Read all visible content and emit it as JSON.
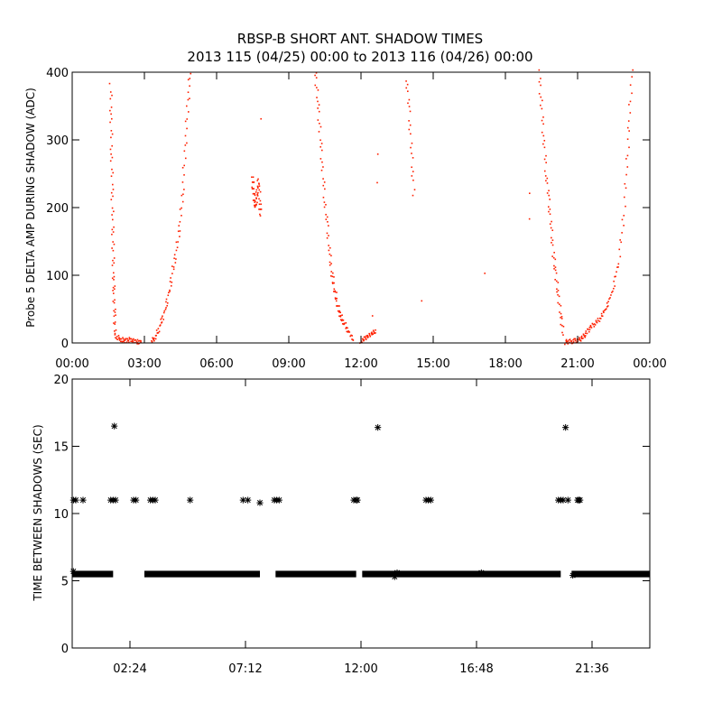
{
  "title_line1": "RBSP-B SHORT ANT. SHADOW TIMES",
  "title_line2": "2013 115 (04/25) 00:00 to 2013 116 (04/26) 00:00",
  "colors": {
    "amp": "#ff2000",
    "gap": "#000000"
  },
  "chart_data": [
    {
      "type": "scatter",
      "ylabel": "Probe 5 DELTA AMP DURING SHADOW (ADC)",
      "xlim": [
        0,
        24
      ],
      "ylim": [
        0,
        400
      ],
      "x_unit": "hours",
      "xticks": [
        0,
        3,
        6,
        9,
        12,
        15,
        18,
        21,
        24
      ],
      "xtick_labels": [
        "00:00",
        "03:00",
        "06:00",
        "09:00",
        "12:00",
        "15:00",
        "18:00",
        "21:00",
        "00:00"
      ],
      "yticks": [
        0,
        100,
        200,
        300,
        400
      ],
      "ytick_labels": [
        "0",
        "100",
        "200",
        "300",
        "400"
      ],
      "color": "#ff2000",
      "segments": [
        {
          "x": [
            1.6,
            1.62,
            1.64,
            1.66,
            1.68,
            1.7,
            1.72,
            1.74,
            1.76,
            1.78
          ],
          "y": [
            380,
            330,
            280,
            230,
            180,
            140,
            100,
            70,
            40,
            15
          ]
        },
        {
          "x": [
            1.8,
            1.95,
            2.1,
            2.25,
            2.4,
            2.55,
            2.7,
            2.85
          ],
          "y": [
            10,
            6,
            4,
            3,
            5,
            3,
            2,
            1
          ]
        },
        {
          "x": [
            3.3,
            3.45,
            3.6,
            3.75,
            3.9,
            4.05,
            4.2,
            4.35,
            4.5,
            4.6,
            4.7,
            4.8,
            4.9
          ],
          "y": [
            2,
            8,
            20,
            35,
            55,
            80,
            110,
            140,
            180,
            230,
            290,
            350,
            400
          ]
        },
        {
          "x": [
            7.5,
            7.52,
            7.55,
            7.6,
            7.65,
            7.7,
            7.75,
            7.8,
            7.82
          ],
          "y": [
            245,
            230,
            215,
            200,
            210,
            225,
            240,
            205,
            190
          ]
        },
        {
          "x": [
            10.1,
            10.2,
            10.3,
            10.4,
            10.5,
            10.6,
            10.7,
            10.8,
            10.9,
            11.0,
            11.1,
            11.2,
            11.35,
            11.5,
            11.7
          ],
          "y": [
            400,
            360,
            310,
            260,
            210,
            170,
            130,
            100,
            80,
            60,
            45,
            35,
            25,
            15,
            5
          ]
        },
        {
          "x": [
            12.0,
            12.15,
            12.3,
            12.45,
            12.6
          ],
          "y": [
            2,
            6,
            10,
            14,
            18
          ]
        },
        {
          "x": [
            13.9,
            14.0,
            14.1,
            14.2
          ],
          "y": [
            390,
            340,
            280,
            220
          ]
        },
        {
          "x": [
            19.4,
            19.5,
            19.6,
            19.7,
            19.8,
            19.9,
            20.0,
            20.1,
            20.2,
            20.3,
            20.4
          ],
          "y": [
            400,
            350,
            300,
            250,
            210,
            170,
            130,
            100,
            70,
            40,
            15
          ]
        },
        {
          "x": [
            20.5,
            20.6,
            20.75,
            20.9,
            21.05,
            21.2,
            21.35,
            21.5,
            21.7,
            21.9,
            22.1,
            22.3,
            22.5,
            22.7,
            22.9,
            23.05,
            23.15,
            23.25
          ],
          "y": [
            1,
            2,
            2,
            3,
            4,
            8,
            14,
            22,
            28,
            35,
            45,
            60,
            85,
            120,
            180,
            260,
            330,
            400
          ]
        },
        {
          "x": [
            7.8,
            12.7,
            12.72,
            14.5,
            12.5,
            17.1,
            19.0,
            19.05
          ],
          "y": [
            330,
            280,
            240,
            60,
            40,
            105,
            180,
            220
          ]
        }
      ]
    },
    {
      "type": "scatter",
      "ylabel": "TIME BETWEEN SHADOWS (SEC)",
      "xlim": [
        0,
        24
      ],
      "ylim": [
        0,
        20
      ],
      "x_unit": "hours",
      "xticks": [
        2.4,
        7.2,
        12.0,
        16.8,
        21.6
      ],
      "xtick_labels": [
        "02:24",
        "07:12",
        "12:00",
        "16:48",
        "21:36"
      ],
      "yticks": [
        0,
        5,
        10,
        15,
        20
      ],
      "ytick_labels": [
        "0",
        "5",
        "10",
        "15",
        "20"
      ],
      "color": "#000000",
      "baseline": {
        "y": 5.5,
        "ranges": [
          [
            0.0,
            1.7
          ],
          [
            3.0,
            7.8
          ],
          [
            8.45,
            11.8
          ],
          [
            12.05,
            20.3
          ],
          [
            20.75,
            24.0
          ]
        ]
      },
      "points": {
        "x": [
          0.05,
          0.15,
          0.45,
          1.6,
          1.7,
          1.75,
          1.8,
          2.55,
          2.65,
          3.25,
          3.35,
          3.45,
          4.9,
          7.1,
          7.3,
          7.8,
          8.4,
          8.5,
          8.6,
          11.7,
          11.8,
          11.85,
          12.7,
          14.7,
          14.8,
          14.9,
          20.2,
          20.3,
          20.4,
          20.5,
          20.6,
          21.0,
          21.05,
          21.1,
          0.05,
          13.4,
          13.5,
          17.0,
          20.8
        ],
        "y": [
          11.0,
          11.0,
          11.0,
          11.0,
          11.0,
          16.5,
          11.0,
          11.0,
          11.0,
          11.0,
          11.0,
          11.0,
          11.0,
          11.0,
          11.0,
          10.8,
          11.0,
          11.0,
          11.0,
          11.0,
          11.0,
          11.0,
          16.4,
          11.0,
          11.0,
          11.0,
          11.0,
          11.0,
          11.0,
          16.4,
          11.0,
          11.0,
          11.0,
          11.0,
          5.7,
          5.3,
          5.6,
          5.6,
          5.4
        ]
      }
    }
  ]
}
